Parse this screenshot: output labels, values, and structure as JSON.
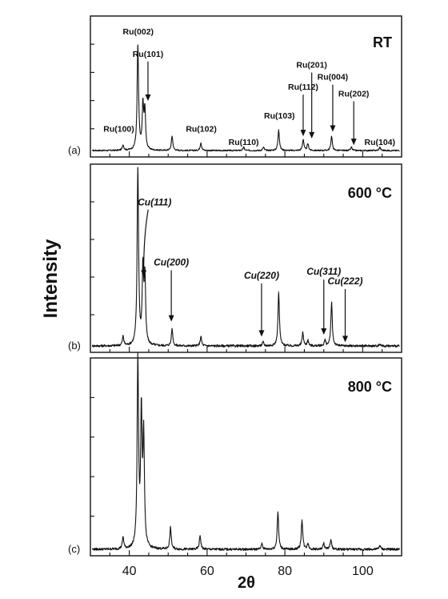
{
  "chart_data": {
    "type": "line",
    "xlabel": "2θ",
    "ylabel": "Intensity",
    "xlim": [
      30,
      110
    ],
    "xticks": [
      40,
      60,
      80,
      100
    ],
    "grid": false,
    "panels": [
      {
        "letter": "(a)",
        "temperature": "RT",
        "baseline": 0.05,
        "peaks": [
          {
            "x": 38.4,
            "y": 0.1
          },
          {
            "x": 42.2,
            "y": 1.0
          },
          {
            "x": 43.5,
            "y": 0.45
          },
          {
            "x": 44.0,
            "y": 0.4
          },
          {
            "x": 51.0,
            "y": 0.18
          },
          {
            "x": 58.4,
            "y": 0.12
          },
          {
            "x": 69.4,
            "y": 0.08
          },
          {
            "x": 74.5,
            "y": 0.08
          },
          {
            "x": 78.4,
            "y": 0.24
          },
          {
            "x": 84.7,
            "y": 0.15
          },
          {
            "x": 85.9,
            "y": 0.11
          },
          {
            "x": 92.0,
            "y": 0.18
          },
          {
            "x": 97.1,
            "y": 0.08
          },
          {
            "x": 104.4,
            "y": 0.08
          }
        ],
        "labels": [
          {
            "text": "Ru(100)",
            "x": 37.3,
            "y": 0.22,
            "arrow": false
          },
          {
            "text": "Ru(002)",
            "x": 42.3,
            "y": 1.1,
            "arrow": false
          },
          {
            "text": "Ru(101)",
            "x": 44.8,
            "y": 0.9,
            "arrow_to": 0.5
          },
          {
            "text": "Ru(102)",
            "x": 58.5,
            "y": 0.22,
            "arrow": false
          },
          {
            "text": "Ru(110)",
            "x": 69.4,
            "y": 0.1,
            "arrow": false
          },
          {
            "text": "Ru(103)",
            "x": 78.6,
            "y": 0.34,
            "arrow": false
          },
          {
            "text": "Ru(112)",
            "x": 84.7,
            "y": 0.6,
            "arrow_to": 0.18
          },
          {
            "text": "Ru(201)",
            "x": 86.9,
            "y": 0.8,
            "arrow_to": 0.16
          },
          {
            "text": "Ru(004)",
            "x": 92.3,
            "y": 0.69,
            "arrow_to": 0.22
          },
          {
            "text": "Ru(202)",
            "x": 97.7,
            "y": 0.54,
            "arrow_to": 0.1
          },
          {
            "text": "Ru(104)",
            "x": 104.4,
            "y": 0.1,
            "arrow": false
          }
        ]
      },
      {
        "letter": "(b)",
        "temperature": "600 °C",
        "baseline": 0.05,
        "peaks": [
          {
            "x": 38.4,
            "y": 0.1
          },
          {
            "x": 42.2,
            "y": 1.0
          },
          {
            "x": 43.5,
            "y": 0.45
          },
          {
            "x": 44.0,
            "y": 0.4
          },
          {
            "x": 51.0,
            "y": 0.14
          },
          {
            "x": 58.4,
            "y": 0.1
          },
          {
            "x": 74.4,
            "y": 0.07
          },
          {
            "x": 78.4,
            "y": 0.34
          },
          {
            "x": 84.6,
            "y": 0.12
          },
          {
            "x": 85.9,
            "y": 0.08
          },
          {
            "x": 90.3,
            "y": 0.08
          },
          {
            "x": 92.0,
            "y": 0.28
          },
          {
            "x": 104.4,
            "y": 0.06
          }
        ],
        "labels": [
          {
            "text": "Cu(111)",
            "x": 46.5,
            "y": 0.8,
            "arrow_to": 0.42,
            "curved": true
          },
          {
            "text": "Cu(200)",
            "x": 50.8,
            "y": 0.48,
            "arrow_to": 0.18
          },
          {
            "text": "Cu(220)",
            "x": 74.0,
            "y": 0.41,
            "arrow_to": 0.1
          },
          {
            "text": "Cu(311)",
            "x": 90.0,
            "y": 0.43,
            "arrow_to": 0.11
          },
          {
            "text": "Cu(222)",
            "x": 95.5,
            "y": 0.38,
            "arrow_to": 0.07
          }
        ]
      },
      {
        "letter": "(c)",
        "temperature": "800 °C",
        "baseline": 0.05,
        "peaks": [
          {
            "x": 38.4,
            "y": 0.11
          },
          {
            "x": 42.2,
            "y": 1.0
          },
          {
            "x": 43.1,
            "y": 0.72
          },
          {
            "x": 43.7,
            "y": 0.6
          },
          {
            "x": 50.6,
            "y": 0.16
          },
          {
            "x": 58.2,
            "y": 0.12
          },
          {
            "x": 74.1,
            "y": 0.08
          },
          {
            "x": 78.2,
            "y": 0.24
          },
          {
            "x": 84.4,
            "y": 0.2
          },
          {
            "x": 85.9,
            "y": 0.08
          },
          {
            "x": 90.0,
            "y": 0.08
          },
          {
            "x": 91.8,
            "y": 0.1
          },
          {
            "x": 104.4,
            "y": 0.07
          }
        ],
        "labels": []
      }
    ]
  }
}
